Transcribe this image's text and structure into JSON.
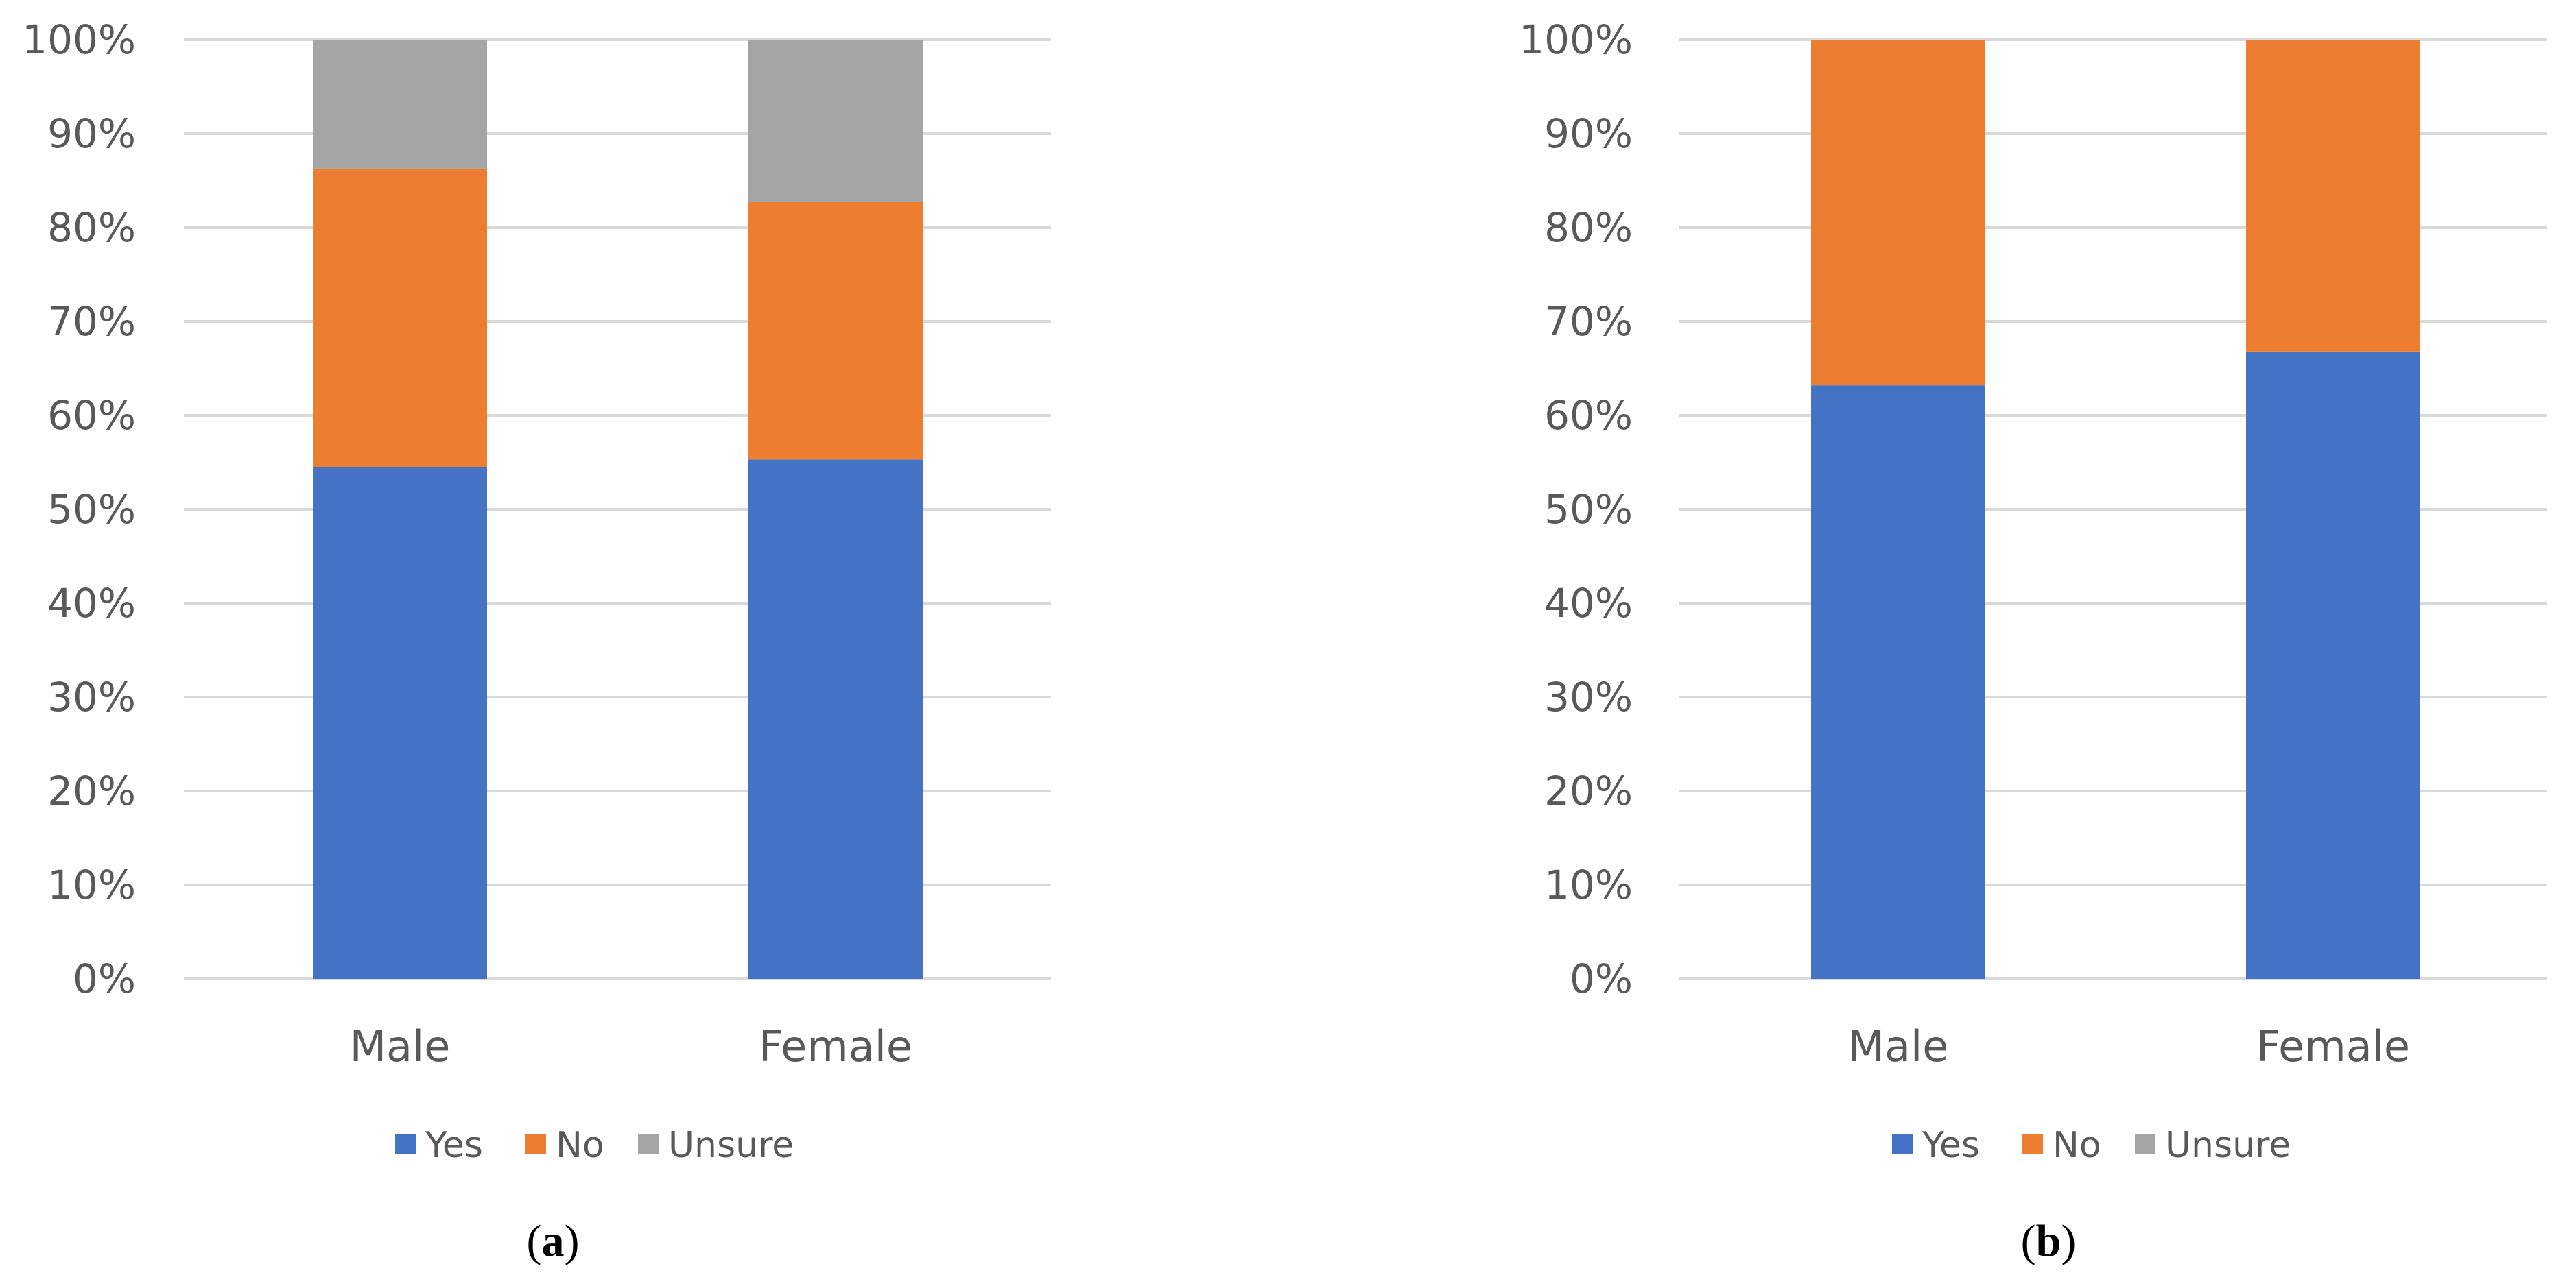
{
  "chart_data": [
    {
      "type": "bar",
      "stacked": true,
      "panel_label": {
        "open": "(",
        "letter": "a",
        "close": ")"
      },
      "categories": [
        "Male",
        "Female"
      ],
      "series": [
        {
          "name": "Yes",
          "color": "#4472C4",
          "values": [
            54.5,
            55.3
          ]
        },
        {
          "name": "No",
          "color": "#ED7D31",
          "values": [
            31.8,
            27.4
          ]
        },
        {
          "name": "Unsure",
          "color": "#A5A5A5",
          "values": [
            13.7,
            17.3
          ]
        }
      ],
      "ylim": [
        0,
        100
      ],
      "yticks": [
        "0%",
        "10%",
        "20%",
        "30%",
        "40%",
        "50%",
        "60%",
        "70%",
        "80%",
        "90%",
        "100%"
      ],
      "grid": true,
      "legend": "bottom"
    },
    {
      "type": "bar",
      "stacked": true,
      "panel_label": {
        "open": "(",
        "letter": "b",
        "close": ")"
      },
      "categories": [
        "Male",
        "Female"
      ],
      "series": [
        {
          "name": "Yes",
          "color": "#4472C4",
          "values": [
            63.2,
            66.8
          ]
        },
        {
          "name": "No",
          "color": "#ED7D31",
          "values": [
            36.8,
            33.2
          ]
        },
        {
          "name": "Unsure",
          "color": "#A5A5A5",
          "values": [
            0,
            0
          ]
        }
      ],
      "ylim": [
        0,
        100
      ],
      "yticks": [
        "0%",
        "10%",
        "20%",
        "30%",
        "40%",
        "50%",
        "60%",
        "70%",
        "80%",
        "90%",
        "100%"
      ],
      "grid": true,
      "legend": "bottom"
    }
  ]
}
